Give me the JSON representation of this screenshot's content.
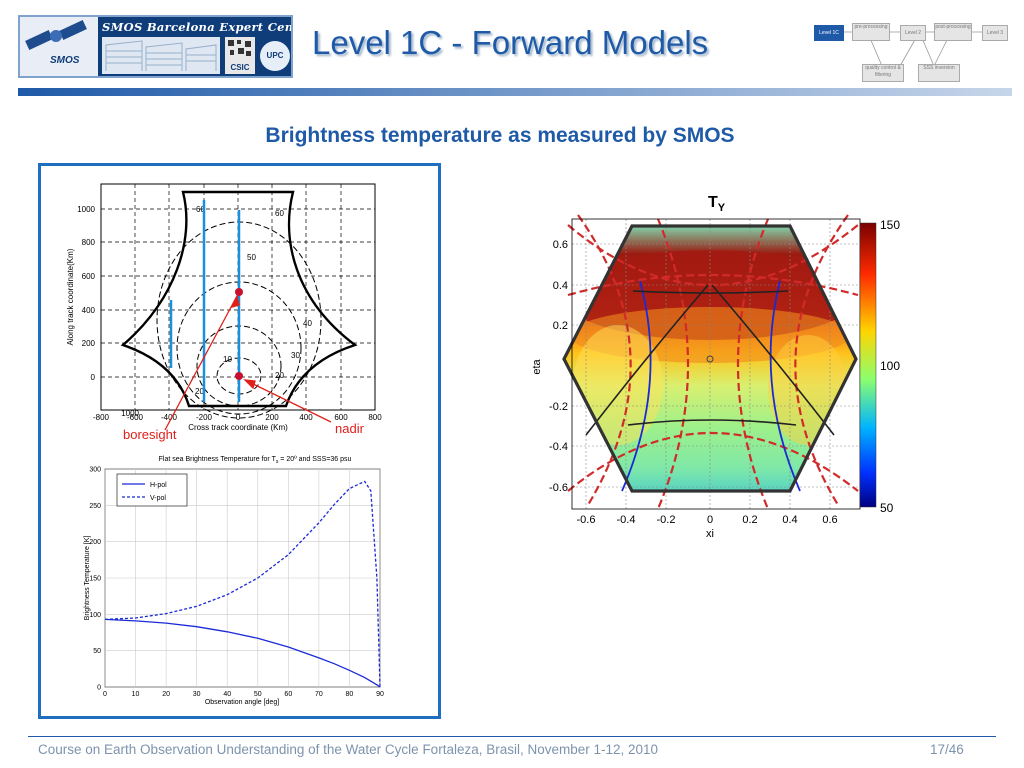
{
  "header": {
    "logo_title": "SMOS Barcelona Expert Centre",
    "logo_smos": "SMOS",
    "logo_csic": "CSIC",
    "logo_upc": "UPC",
    "title": "Level 1C - Forward Models",
    "flow_steps": [
      "Level 1C",
      "pre-processing",
      "Level 2",
      "post-processing",
      "Level 3",
      "quality control & filtering",
      "SSS inversion"
    ]
  },
  "subtitle": "Brightness temperature as measured by SMOS",
  "fov_plot": {
    "xlabel": "Cross track coordinate (Km)",
    "ylabel": "Along track coordinate(Km)",
    "xticks": [
      "-800",
      "-600",
      "-400",
      "-200",
      "0",
      "200",
      "400",
      "600",
      "800"
    ],
    "yticks": [
      "1000",
      "800",
      "600",
      "400",
      "200",
      "0"
    ],
    "contour_labels": [
      "60",
      "60",
      "50",
      "40",
      "30",
      "20",
      "20",
      "10"
    ],
    "annotation_boresight": "boresight",
    "annotation_nadir": "nadir"
  },
  "tb_plot": {
    "title": "Flat sea Brightness Temperature for T",
    "title_sub": "s",
    "title_rest": " = 20º and SSS=36 psu",
    "xlabel": "Observation angle [deg]",
    "ylabel": "Brightness Temperature [K]",
    "legend": [
      "H-pol",
      "V-pol"
    ],
    "xticks": [
      "0",
      "10",
      "20",
      "30",
      "40",
      "50",
      "60",
      "70",
      "80",
      "90"
    ],
    "yticks": [
      "300",
      "250",
      "200",
      "150",
      "100",
      "50",
      "0"
    ]
  },
  "ty_map": {
    "title": "T",
    "title_sub": "Y",
    "xlabel": "xi",
    "ylabel": "eta",
    "xticks": [
      "-0.6",
      "-0.4",
      "-0.2",
      "0",
      "0.2",
      "0.4",
      "0.6"
    ],
    "yticks": [
      "0.6",
      "0.4",
      "0.2",
      "-0.2",
      "-0.4",
      "-0.6"
    ],
    "colorbar_ticks": [
      "150",
      "100",
      "50"
    ]
  },
  "chart_data": [
    {
      "type": "line",
      "title": "Flat sea Brightness Temperature for Ts = 20º and SSS=36 psu",
      "xlabel": "Observation angle [deg]",
      "ylabel": "Brightness Temperature [K]",
      "xlim": [
        0,
        90
      ],
      "ylim": [
        0,
        300
      ],
      "grid": true,
      "legend_position": "top-left",
      "x": [
        0,
        10,
        20,
        30,
        40,
        50,
        60,
        70,
        75,
        80,
        85,
        87,
        89,
        90
      ],
      "series": [
        {
          "name": "H-pol",
          "style": "solid",
          "color": "#1a2ad6",
          "values": [
            93,
            91,
            88,
            83,
            76,
            67,
            55,
            40,
            32,
            23,
            13,
            8,
            3,
            0
          ]
        },
        {
          "name": "V-pol",
          "style": "dashed",
          "color": "#1a2ad6",
          "values": [
            93,
            95,
            101,
            111,
            127,
            150,
            182,
            226,
            251,
            273,
            283,
            270,
            150,
            0
          ]
        }
      ]
    }
  ],
  "footer": {
    "text": "Course on Earth Observation Understanding of the Water Cycle Fortaleza, Brasil, November 1-12, 2010",
    "page": "17/46"
  }
}
